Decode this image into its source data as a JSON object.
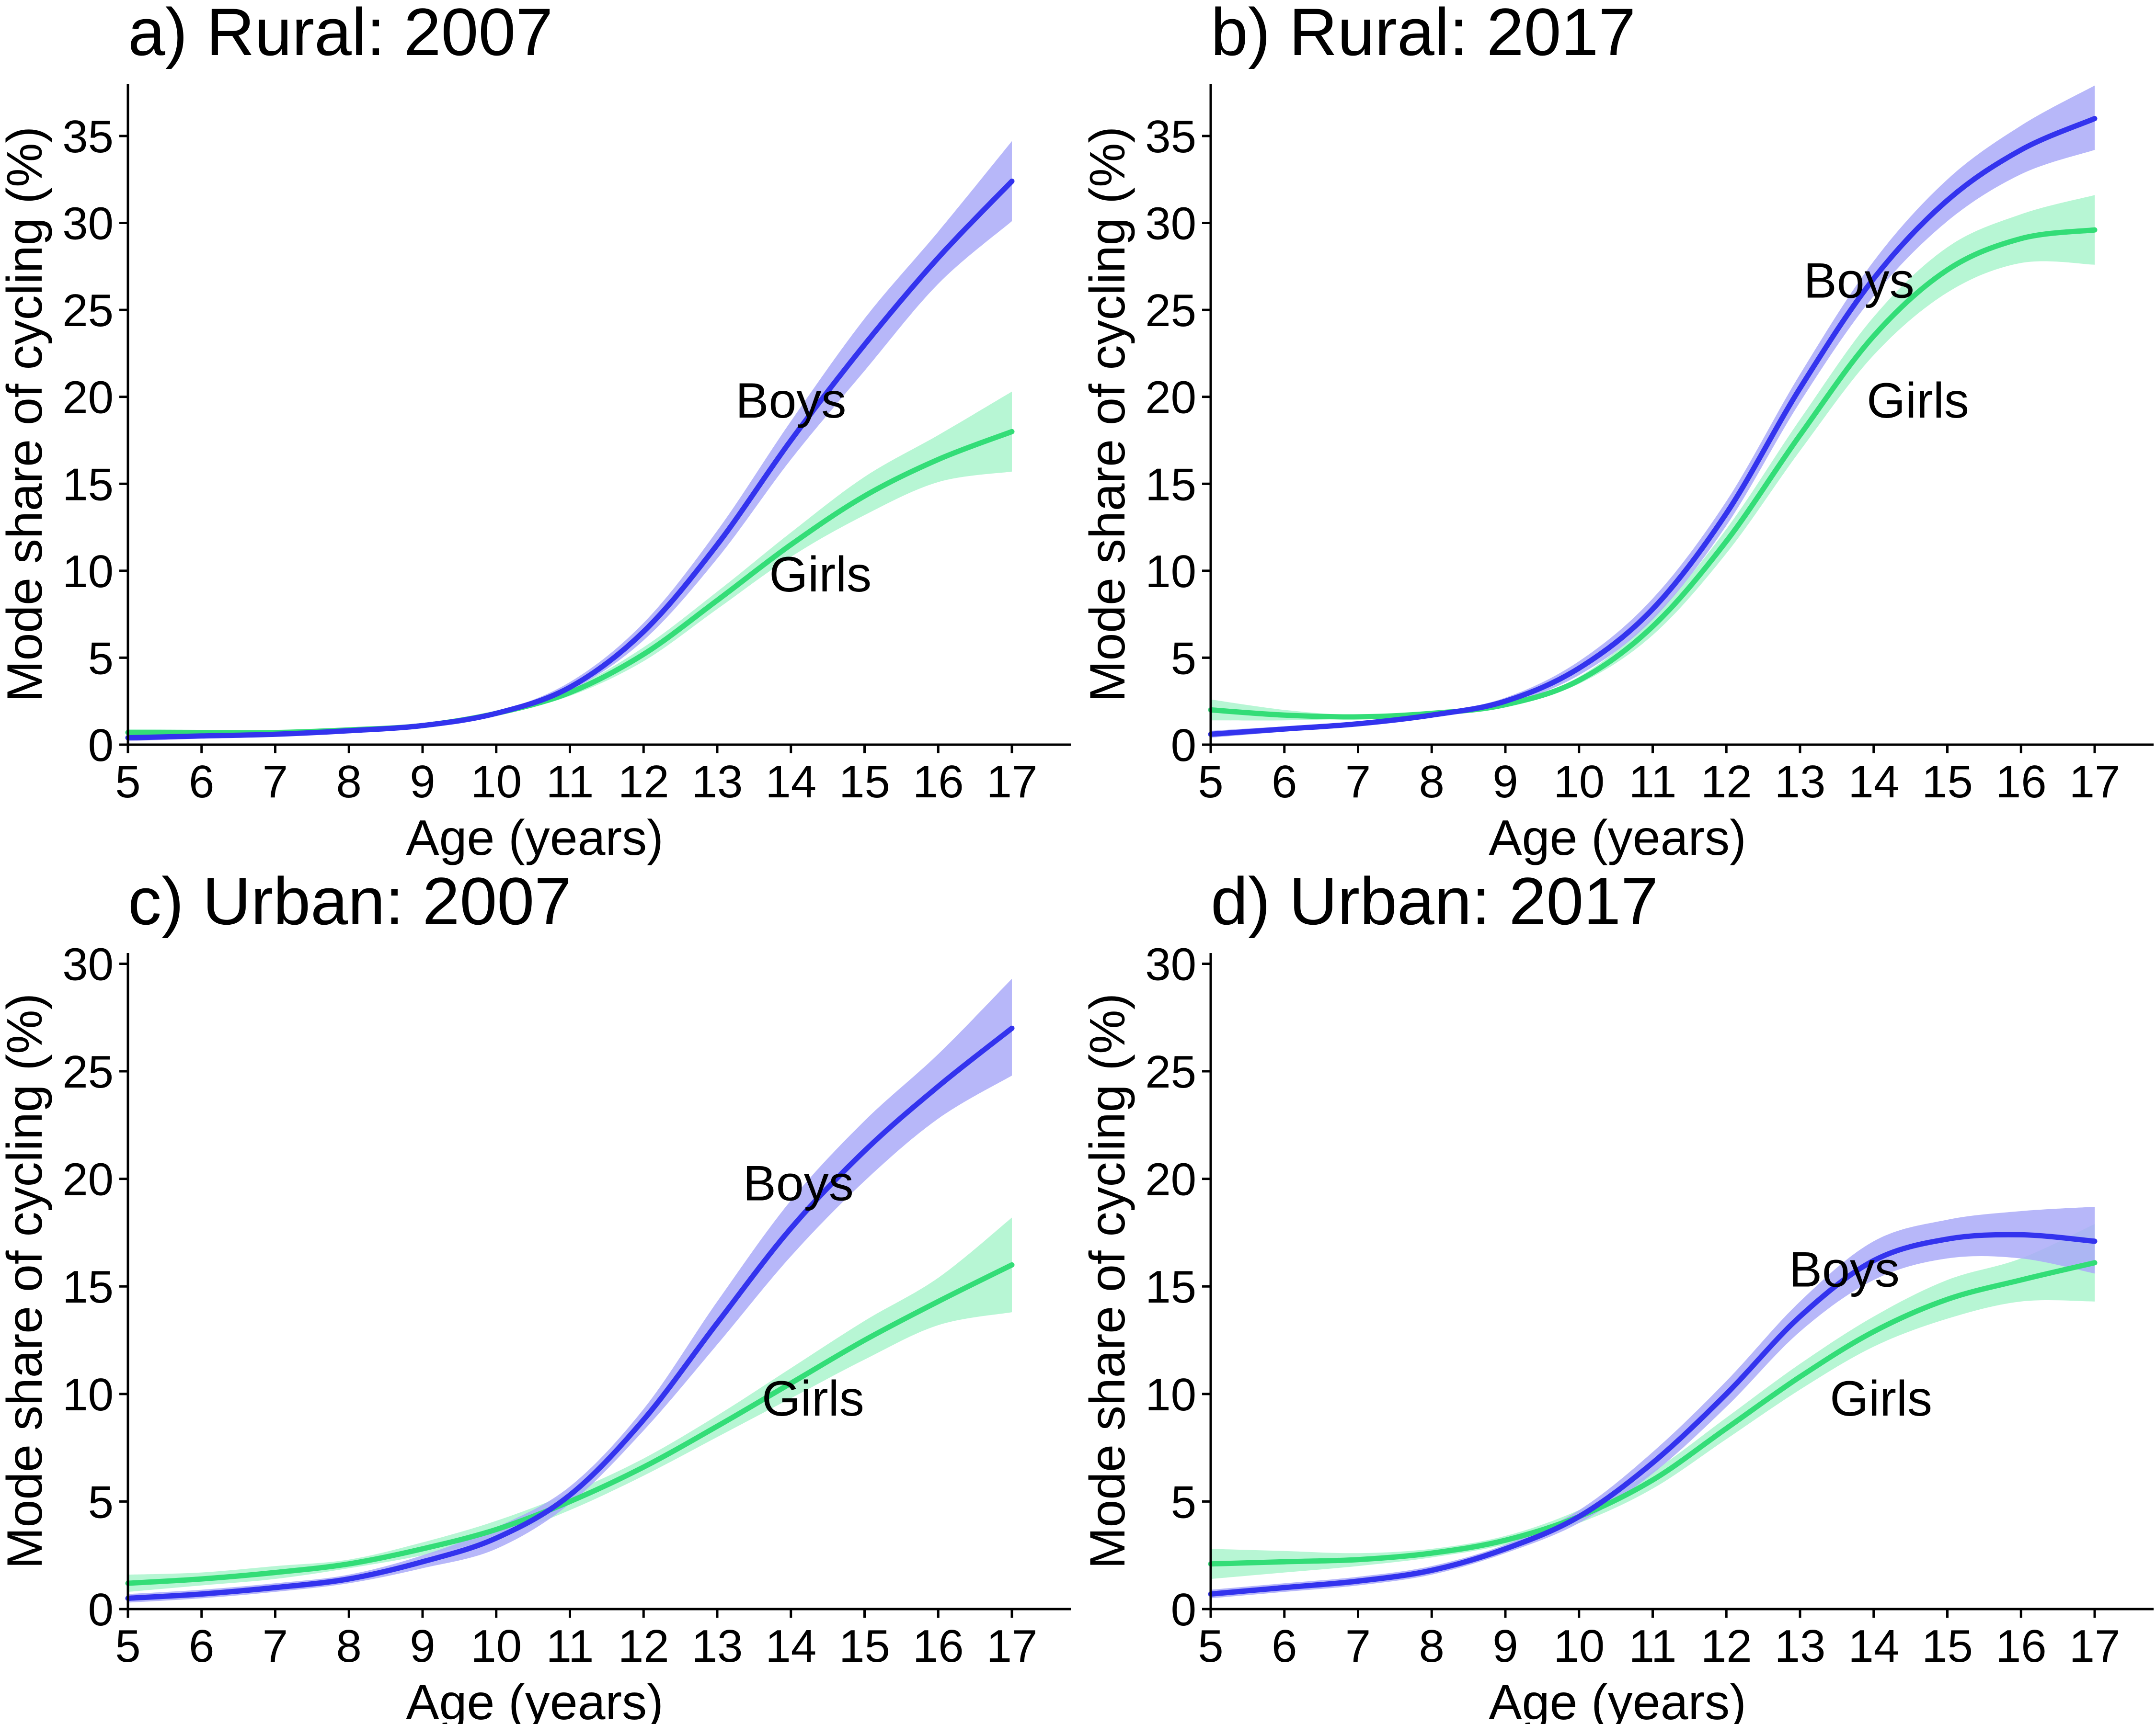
{
  "colors": {
    "boys": "#3333ee",
    "girls": "#33dd77",
    "boys_band": "#aaaaf8",
    "girls_band": "#aaf5cc",
    "axis": "#000000"
  },
  "chart_data": [
    {
      "type": "line",
      "title": "a) Rural: 2007",
      "xlabel": "Age (years)",
      "ylabel": "Mode share of cycling (%)",
      "xlim": [
        5,
        17.8
      ],
      "ylim": [
        0,
        38
      ],
      "xticks": [
        5,
        6,
        7,
        8,
        9,
        10,
        11,
        12,
        13,
        14,
        15,
        16,
        17
      ],
      "yticks": [
        0,
        5,
        10,
        15,
        20,
        25,
        30,
        35
      ],
      "grid": false,
      "x": [
        5,
        6,
        7,
        8,
        9,
        10,
        11,
        12,
        13,
        14,
        15,
        16,
        17
      ],
      "series": [
        {
          "name": "Boys",
          "label_at": [
            14,
            19.8
          ],
          "values": [
            0.4,
            0.5,
            0.6,
            0.8,
            1.1,
            1.8,
            3.3,
            6.5,
            11.5,
            17.5,
            23,
            28,
            32.4
          ],
          "lower": [
            0.2,
            0.35,
            0.5,
            0.7,
            1.0,
            1.7,
            3.1,
            6.0,
            10.7,
            16.4,
            21.5,
            26.5,
            30.1
          ],
          "upper": [
            0.6,
            0.65,
            0.7,
            0.9,
            1.2,
            1.9,
            3.6,
            7.0,
            12.3,
            18.6,
            24.5,
            29.5,
            34.7
          ]
        },
        {
          "name": "Girls",
          "label_at": [
            14.4,
            9.8
          ],
          "values": [
            0.7,
            0.7,
            0.7,
            0.85,
            1.1,
            1.8,
            3.0,
            5.2,
            8.3,
            11.5,
            14.3,
            16.4,
            18.0
          ],
          "lower": [
            0.5,
            0.55,
            0.6,
            0.75,
            1.0,
            1.7,
            2.8,
            4.8,
            7.8,
            10.8,
            13.2,
            15.1,
            15.7
          ],
          "upper": [
            0.9,
            0.85,
            0.8,
            0.95,
            1.2,
            1.9,
            3.2,
            5.6,
            8.8,
            12.2,
            15.4,
            17.8,
            20.3
          ]
        }
      ]
    },
    {
      "type": "line",
      "title": "b) Rural: 2017",
      "xlabel": "Age (years)",
      "ylabel": "Mode share of cycling (%)",
      "xlim": [
        5,
        17.8
      ],
      "ylim": [
        0,
        38
      ],
      "xticks": [
        5,
        6,
        7,
        8,
        9,
        10,
        11,
        12,
        13,
        14,
        15,
        16,
        17
      ],
      "yticks": [
        0,
        5,
        10,
        15,
        20,
        25,
        30,
        35
      ],
      "grid": false,
      "x": [
        5,
        6,
        7,
        8,
        9,
        10,
        11,
        12,
        13,
        14,
        15,
        16,
        17
      ],
      "series": [
        {
          "name": "Boys",
          "label_at": [
            13.8,
            26.7
          ],
          "values": [
            0.6,
            0.9,
            1.2,
            1.7,
            2.5,
            4.4,
            7.8,
            13.3,
            20.5,
            26.8,
            31.3,
            34.2,
            36.0
          ],
          "lower": [
            0.4,
            0.75,
            1.1,
            1.6,
            2.3,
            4.0,
            7.2,
            12.6,
            19.7,
            25.8,
            30.1,
            32.8,
            34.2
          ],
          "upper": [
            0.8,
            1.05,
            1.3,
            1.8,
            2.7,
            4.8,
            8.4,
            14.0,
            21.3,
            27.8,
            32.5,
            35.6,
            37.9
          ]
        },
        {
          "name": "Girls",
          "label_at": [
            14.6,
            19.8
          ],
          "values": [
            2.0,
            1.7,
            1.6,
            1.8,
            2.3,
            3.7,
            6.8,
            11.7,
            17.8,
            23.5,
            27.3,
            29.1,
            29.6
          ],
          "lower": [
            1.4,
            1.4,
            1.5,
            1.7,
            2.2,
            3.5,
            6.3,
            11.0,
            16.9,
            22.4,
            26.0,
            27.7,
            27.6
          ],
          "upper": [
            2.6,
            2.0,
            1.7,
            1.9,
            2.4,
            3.9,
            7.3,
            12.4,
            18.7,
            24.6,
            28.6,
            30.5,
            31.6
          ]
        }
      ]
    },
    {
      "type": "line",
      "title": "c) Urban: 2007",
      "xlabel": "Age (years)",
      "ylabel": "Mode share of cycling (%)",
      "xlim": [
        5,
        17.8
      ],
      "ylim": [
        0,
        30.5
      ],
      "xticks": [
        5,
        6,
        7,
        8,
        9,
        10,
        11,
        12,
        13,
        14,
        15,
        16,
        17
      ],
      "yticks": [
        0,
        5,
        10,
        15,
        20,
        25,
        30
      ],
      "grid": false,
      "x": [
        5,
        6,
        7,
        8,
        9,
        10,
        11,
        12,
        13,
        14,
        15,
        16,
        17
      ],
      "series": [
        {
          "name": "Boys",
          "label_at": [
            14.1,
            19.8
          ],
          "values": [
            0.5,
            0.7,
            1.0,
            1.4,
            2.2,
            3.3,
            5.3,
            8.8,
            13.3,
            17.7,
            21.3,
            24.3,
            27.0
          ],
          "lower": [
            0.3,
            0.5,
            0.8,
            1.2,
            1.9,
            2.8,
            4.9,
            8.3,
            12.3,
            16.4,
            19.9,
            22.8,
            24.8
          ],
          "upper": [
            0.7,
            0.9,
            1.2,
            1.6,
            2.5,
            3.8,
            5.7,
            9.3,
            14.3,
            19.0,
            22.7,
            25.8,
            29.3
          ]
        },
        {
          "name": "Girls",
          "label_at": [
            14.3,
            9.8
          ],
          "values": [
            1.2,
            1.4,
            1.7,
            2.1,
            2.8,
            3.7,
            5.0,
            6.6,
            8.5,
            10.5,
            12.5,
            14.3,
            16.0
          ],
          "lower": [
            0.8,
            1.1,
            1.4,
            1.9,
            2.5,
            3.3,
            4.6,
            6.2,
            8.0,
            9.8,
            11.6,
            13.2,
            13.8
          ],
          "upper": [
            1.6,
            1.7,
            2.0,
            2.3,
            3.1,
            4.1,
            5.4,
            7.0,
            9.0,
            11.2,
            13.4,
            15.4,
            18.2
          ]
        }
      ]
    },
    {
      "type": "line",
      "title": "d) Urban: 2017",
      "xlabel": "Age (years)",
      "ylabel": "Mode share of cycling (%)",
      "xlim": [
        5,
        17.8
      ],
      "ylim": [
        0,
        30.5
      ],
      "xticks": [
        5,
        6,
        7,
        8,
        9,
        10,
        11,
        12,
        13,
        14,
        15,
        16,
        17
      ],
      "yticks": [
        0,
        5,
        10,
        15,
        20,
        25,
        30
      ],
      "grid": false,
      "x": [
        5,
        6,
        7,
        8,
        9,
        10,
        11,
        12,
        13,
        14,
        15,
        16,
        17
      ],
      "series": [
        {
          "name": "Boys",
          "label_at": [
            13.6,
            15.8
          ],
          "values": [
            0.7,
            1.0,
            1.3,
            1.8,
            2.8,
            4.3,
            6.8,
            10.0,
            13.6,
            16.2,
            17.2,
            17.4,
            17.1
          ],
          "lower": [
            0.5,
            0.8,
            1.1,
            1.6,
            2.6,
            4.0,
            6.3,
            9.4,
            12.9,
            15.3,
            16.3,
            16.3,
            15.6
          ],
          "upper": [
            0.9,
            1.2,
            1.5,
            2.0,
            3.0,
            4.6,
            7.3,
            10.6,
            14.3,
            17.1,
            18.1,
            18.5,
            18.7
          ]
        },
        {
          "name": "Girls",
          "label_at": [
            14.1,
            9.8
          ],
          "values": [
            2.1,
            2.2,
            2.3,
            2.6,
            3.2,
            4.3,
            6.0,
            8.4,
            10.8,
            12.9,
            14.4,
            15.3,
            16.1
          ],
          "lower": [
            1.4,
            1.7,
            2.0,
            2.4,
            3.0,
            4.0,
            5.6,
            7.9,
            10.2,
            12.2,
            13.5,
            14.3,
            14.3
          ],
          "upper": [
            2.8,
            2.7,
            2.6,
            2.8,
            3.4,
            4.6,
            6.4,
            8.9,
            11.4,
            13.6,
            15.3,
            16.3,
            17.9
          ]
        }
      ]
    }
  ]
}
